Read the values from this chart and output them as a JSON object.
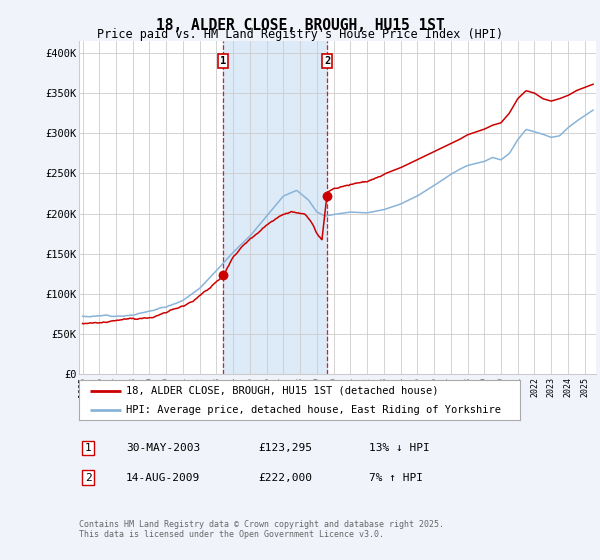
{
  "title": "18, ALDER CLOSE, BROUGH, HU15 1ST",
  "subtitle": "Price paid vs. HM Land Registry's House Price Index (HPI)",
  "ylabel_ticks": [
    "£0",
    "£50K",
    "£100K",
    "£150K",
    "£200K",
    "£250K",
    "£300K",
    "£350K",
    "£400K"
  ],
  "ytick_values": [
    0,
    50000,
    100000,
    150000,
    200000,
    250000,
    300000,
    350000,
    400000
  ],
  "ylim": [
    0,
    415000
  ],
  "xlim_start": 1994.8,
  "xlim_end": 2025.7,
  "hpi_color": "#89b4d8",
  "price_color": "#cc0000",
  "shade_color": "#ddeaf7",
  "marker1_date": 2003.42,
  "marker1_price": 123295,
  "marker2_date": 2009.62,
  "marker2_price": 222000,
  "legend_line1": "18, ALDER CLOSE, BROUGH, HU15 1ST (detached house)",
  "legend_line2": "HPI: Average price, detached house, East Riding of Yorkshire",
  "annotation1_date": "30-MAY-2003",
  "annotation1_price": "£123,295",
  "annotation1_hpi": "13% ↓ HPI",
  "annotation2_date": "14-AUG-2009",
  "annotation2_price": "£222,000",
  "annotation2_hpi": "7% ↑ HPI",
  "footer": "Contains HM Land Registry data © Crown copyright and database right 2025.\nThis data is licensed under the Open Government Licence v3.0.",
  "background_color": "#f0f4fa",
  "plot_bg_color": "#ffffff",
  "grid_color": "#cccccc",
  "title_fontsize": 10.5,
  "subtitle_fontsize": 8.5
}
